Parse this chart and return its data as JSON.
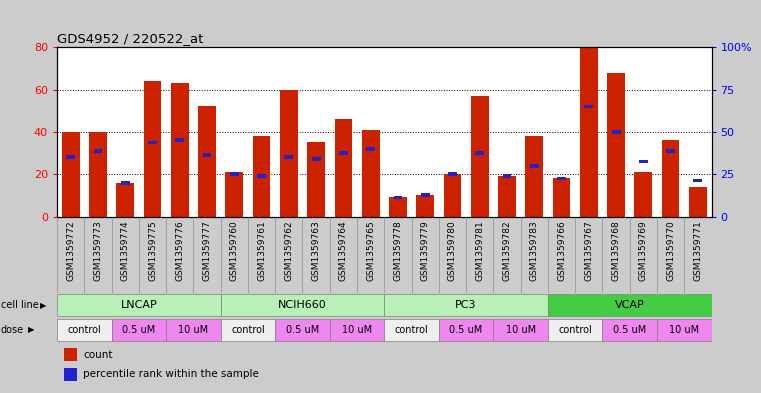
{
  "title": "GDS4952 / 220522_at",
  "samples": [
    "GSM1359772",
    "GSM1359773",
    "GSM1359774",
    "GSM1359775",
    "GSM1359776",
    "GSM1359777",
    "GSM1359760",
    "GSM1359761",
    "GSM1359762",
    "GSM1359763",
    "GSM1359764",
    "GSM1359765",
    "GSM1359778",
    "GSM1359779",
    "GSM1359780",
    "GSM1359781",
    "GSM1359782",
    "GSM1359783",
    "GSM1359766",
    "GSM1359767",
    "GSM1359768",
    "GSM1359769",
    "GSM1359770",
    "GSM1359771"
  ],
  "count_values": [
    40,
    40,
    16,
    64,
    63,
    52,
    21,
    38,
    60,
    35,
    46,
    41,
    9,
    10,
    20,
    57,
    19,
    38,
    18,
    80,
    68,
    21,
    36,
    14
  ],
  "percentile_values": [
    28,
    31,
    16,
    35,
    36,
    29,
    20,
    19,
    28,
    27,
    30,
    32,
    9,
    10,
    20,
    30,
    19,
    24,
    18,
    52,
    40,
    26,
    31,
    17
  ],
  "cell_line_data": [
    {
      "name": "LNCAP",
      "start": 0,
      "end": 6,
      "color": "#b8f0b8"
    },
    {
      "name": "NCIH660",
      "start": 6,
      "end": 12,
      "color": "#b8f0b8"
    },
    {
      "name": "PC3",
      "start": 12,
      "end": 18,
      "color": "#b8f0b8"
    },
    {
      "name": "VCAP",
      "start": 18,
      "end": 24,
      "color": "#44cc44"
    }
  ],
  "dose_display": [
    {
      "name": "control",
      "start": 0,
      "end": 2,
      "color": "#eeeeee"
    },
    {
      "name": "0.5 uM",
      "start": 2,
      "end": 4,
      "color": "#ee88ee"
    },
    {
      "name": "10 uM",
      "start": 4,
      "end": 6,
      "color": "#ee88ee"
    },
    {
      "name": "control",
      "start": 6,
      "end": 8,
      "color": "#eeeeee"
    },
    {
      "name": "0.5 uM",
      "start": 8,
      "end": 10,
      "color": "#ee88ee"
    },
    {
      "name": "10 uM",
      "start": 10,
      "end": 12,
      "color": "#ee88ee"
    },
    {
      "name": "control",
      "start": 12,
      "end": 14,
      "color": "#eeeeee"
    },
    {
      "name": "0.5 uM",
      "start": 14,
      "end": 16,
      "color": "#ee88ee"
    },
    {
      "name": "10 uM",
      "start": 16,
      "end": 18,
      "color": "#ee88ee"
    },
    {
      "name": "control",
      "start": 18,
      "end": 20,
      "color": "#eeeeee"
    },
    {
      "name": "0.5 uM",
      "start": 20,
      "end": 22,
      "color": "#ee88ee"
    },
    {
      "name": "10 uM",
      "start": 22,
      "end": 24,
      "color": "#ee88ee"
    }
  ],
  "bar_color": "#cc2200",
  "percentile_color": "#2222cc",
  "ylim_left": [
    0,
    80
  ],
  "ylim_right": [
    0,
    100
  ],
  "yticks_left": [
    0,
    20,
    40,
    60,
    80
  ],
  "yticks_right": [
    0,
    25,
    50,
    75,
    100
  ],
  "ytick_labels_right": [
    "0",
    "25",
    "50",
    "75",
    "100%"
  ],
  "bg_color": "#cccccc",
  "plot_bg_color": "#ffffff"
}
